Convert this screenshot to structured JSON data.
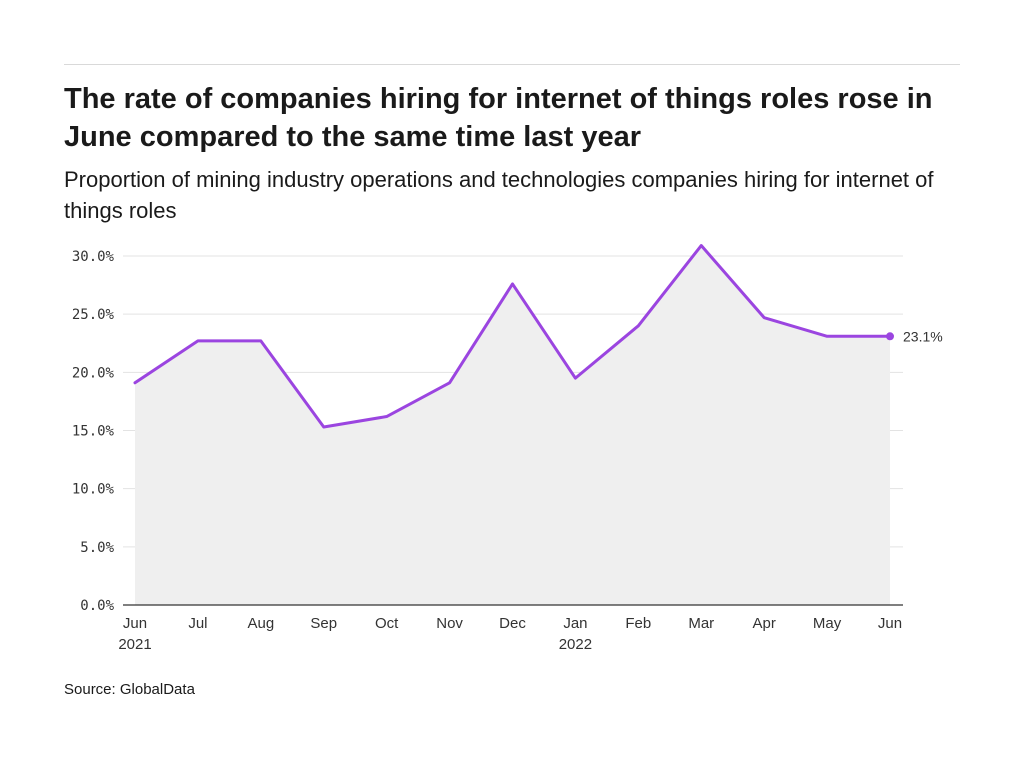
{
  "header": {
    "title": "The rate of companies hiring for internet of things roles rose in June compared to the same time last year",
    "subtitle": "Proportion of mining industry operations and technologies companies hiring for internet of things roles"
  },
  "footer": {
    "source": "Source: GlobalData"
  },
  "chart_data": {
    "type": "area",
    "title": "The rate of companies hiring for internet of things roles rose in June compared to the same time last year",
    "subtitle": "Proportion of mining industry operations and technologies companies hiring for internet of things roles",
    "xlabel": "",
    "ylabel": "",
    "categories": [
      "Jun",
      "Jul",
      "Aug",
      "Sep",
      "Oct",
      "Nov",
      "Dec",
      "Jan",
      "Feb",
      "Mar",
      "Apr",
      "May",
      "Jun"
    ],
    "year_labels": [
      "2021",
      "",
      "",
      "",
      "",
      "",
      "",
      "2022",
      "",
      "",
      "",
      "",
      ""
    ],
    "series": [
      {
        "values": [
          19.1,
          22.7,
          22.7,
          15.3,
          16.2,
          19.1,
          27.6,
          19.5,
          24.0,
          30.9,
          24.7,
          23.1,
          23.1
        ]
      }
    ],
    "ylim": [
      0,
      30
    ],
    "yticks": [
      0,
      5,
      10,
      15,
      20,
      25,
      30
    ],
    "ytick_labels": [
      "0.0%",
      "5.0%",
      "10.0%",
      "15.0%",
      "20.0%",
      "25.0%",
      "30.0%"
    ],
    "end_label": "23.1%",
    "grid": true,
    "line_color": "#9b45e0",
    "fill_color": "#efefef"
  }
}
